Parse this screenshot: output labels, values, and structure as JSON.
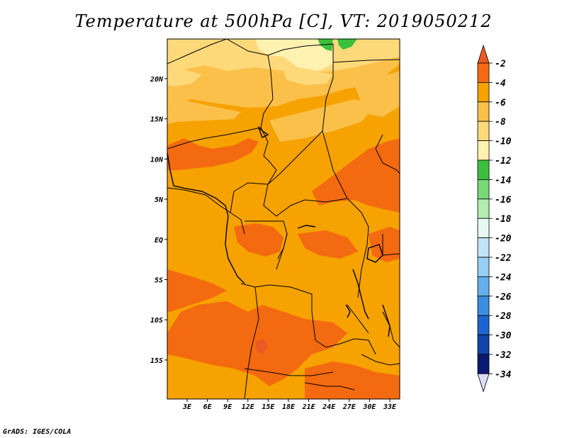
{
  "title": "Temperature at 500hPa [C], VT: 2019050212",
  "credit": "GrADS: IGES/COLA",
  "map": {
    "lon_ticks": [
      "3E",
      "6E",
      "9E",
      "12E",
      "15E",
      "18E",
      "21E",
      "24E",
      "27E",
      "30E",
      "33E"
    ],
    "lat_ticks": [
      "20N",
      "15N",
      "10N",
      "5N",
      "EQ",
      "5S",
      "10S",
      "15S"
    ]
  },
  "colorbar": {
    "labels": [
      "-2",
      "-4",
      "-6",
      "-8",
      "-10",
      "-12",
      "-14",
      "-16",
      "-18",
      "-20",
      "-22",
      "-24",
      "-26",
      "-28",
      "-30",
      "-32",
      "-34"
    ],
    "colors": {
      "tip_top": "#ec5a24",
      "c_m4": "#f46a10",
      "c_m6": "#f6a200",
      "c_m8": "#fac04a",
      "c_m10": "#fdd97a",
      "c_m12": "#fff2b0",
      "c_m14": "#3cbf3c",
      "c_m16": "#78d878",
      "c_m18": "#b4ecb0",
      "c_m20": "#e6f8f4",
      "c_m22": "#c2e4f8",
      "c_m24": "#96cef4",
      "c_m26": "#64b0ec",
      "c_m28": "#3a8ee2",
      "c_m30": "#1e64d0",
      "c_m32": "#1044a8",
      "c_m34": "#0a1a6e",
      "tip_bottom": "#dcdcf4"
    }
  }
}
